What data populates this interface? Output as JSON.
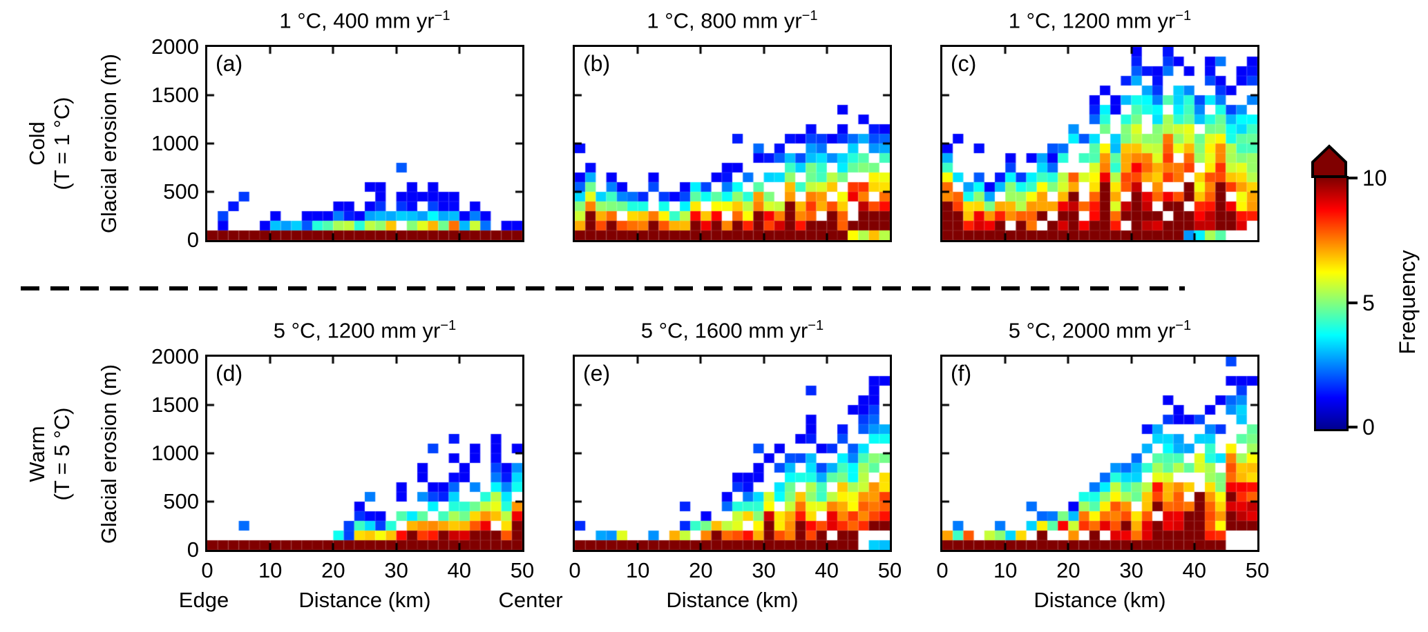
{
  "figure": {
    "row_labels": [
      {
        "line1": "Cold",
        "line2": "(T = 1 °C)"
      },
      {
        "line1": "Warm",
        "line2": "(T = 5 °C)"
      }
    ],
    "y_axis_label": "Glacial erosion (m)",
    "x_axis_label": "Distance (km)",
    "edge_label": "Edge",
    "center_label": "Center"
  },
  "chart_data": {
    "type": "heatmap",
    "x_label": "Distance (km)",
    "y_label": "Glacial erosion (m)",
    "x_range_km": [
      0,
      50
    ],
    "y_range_m": [
      0,
      2000
    ],
    "x_ticks": [
      0,
      10,
      20,
      30,
      40,
      50
    ],
    "y_ticks": [
      0,
      500,
      1000,
      1500,
      2000
    ],
    "bin_size": {
      "x_km": 1.667,
      "y_m": 100
    },
    "colorbar": {
      "label": "Frequency",
      "min": 0,
      "max": 10,
      "ticks": [
        0,
        5,
        10
      ],
      "overflow_arrow": true,
      "jet_stops": [
        [
          0,
          "#00008F"
        ],
        [
          1.25,
          "#0000FF"
        ],
        [
          3.75,
          "#00FFFF"
        ],
        [
          6.25,
          "#FFFF00"
        ],
        [
          8.75,
          "#FF0000"
        ],
        [
          10,
          "#800000"
        ]
      ]
    },
    "panels": [
      {
        "tag": "(a)",
        "title": "1 °C, 400 mm yr",
        "title_sup": "−1",
        "row": 0,
        "col": 0,
        "seed": 101,
        "gamma": 2.4,
        "sparsity": 1.25,
        "envelope_m": [
          80,
          150,
          100,
          200,
          150,
          160,
          250,
          200,
          260,
          220,
          300,
          310,
          420,
          350,
          310,
          550,
          600,
          500,
          650,
          520,
          430,
          600,
          550,
          500,
          310,
          430,
          250,
          160,
          150,
          140
        ]
      },
      {
        "tag": "(b)",
        "title": "1 °C, 800 mm yr",
        "title_sup": "−1",
        "row": 0,
        "col": 1,
        "seed": 202,
        "gamma": 1.15,
        "sparsity": 0.9,
        "base_override": {
          "from_km": 42,
          "mode": "cool"
        },
        "envelope_m": [
          700,
          800,
          650,
          700,
          600,
          550,
          500,
          650,
          520,
          480,
          520,
          800,
          620,
          700,
          760,
          800,
          900,
          850,
          1000,
          1100,
          1200,
          1150,
          1300,
          1250,
          1100,
          1350,
          1300,
          1400,
          1300,
          1250
        ]
      },
      {
        "tag": "(c)",
        "title": "1 °C, 1200 mm yr",
        "title_sup": "−1",
        "row": 0,
        "col": 2,
        "seed": 303,
        "gamma": 0.85,
        "sparsity": 0.8,
        "base_override": {
          "from_km": 37,
          "mode": "cool",
          "empty_from_km": 44
        },
        "envelope_m": [
          950,
          800,
          620,
          700,
          520,
          650,
          820,
          700,
          900,
          1000,
          820,
          1100,
          1300,
          1200,
          1500,
          1600,
          1420,
          1800,
          2000,
          1900,
          1760,
          2000,
          1950,
          1800,
          1620,
          1900,
          1700,
          1520,
          1800,
          1900
        ]
      },
      {
        "tag": "(d)",
        "title": "5 °C, 1200 mm yr",
        "title_sup": "−1",
        "row": 1,
        "col": 0,
        "seed": 404,
        "gamma": 1.7,
        "sparsity": 1.15,
        "envelope_m": [
          80,
          80,
          80,
          80,
          80,
          80,
          80,
          80,
          80,
          80,
          90,
          90,
          200,
          160,
          450,
          400,
          310,
          500,
          700,
          620,
          900,
          820,
          720,
          1000,
          920,
          1100,
          1010,
          1200,
          1110,
          1300
        ]
      },
      {
        "tag": "(e)",
        "title": "5 °C, 1600 mm yr",
        "title_sup": "−1",
        "row": 1,
        "col": 1,
        "seed": 505,
        "gamma": 1.25,
        "sparsity": 1.0,
        "base_override": {
          "from_km": 45,
          "mode": "empty"
        },
        "envelope_m": [
          80,
          80,
          150,
          160,
          200,
          90,
          90,
          160,
          90,
          300,
          260,
          400,
          360,
          500,
          620,
          800,
          720,
          900,
          1000,
          1100,
          1300,
          1210,
          1400,
          1120,
          1300,
          1500,
          1410,
          1700,
          1800,
          1750
        ]
      },
      {
        "tag": "(f)",
        "title": "5 °C, 2000 mm yr",
        "title_sup": "−1",
        "row": 1,
        "col": 2,
        "seed": 606,
        "gamma": 1.0,
        "sparsity": 0.95,
        "base_override": {
          "from_km": 45,
          "mode": "empty"
        },
        "envelope_m": [
          200,
          160,
          250,
          160,
          210,
          260,
          160,
          210,
          300,
          360,
          400,
          500,
          460,
          700,
          820,
          900,
          1100,
          1010,
          1200,
          1400,
          1500,
          1600,
          1410,
          1310,
          1500,
          1600,
          1510,
          1800,
          1900,
          1850
        ]
      }
    ]
  }
}
